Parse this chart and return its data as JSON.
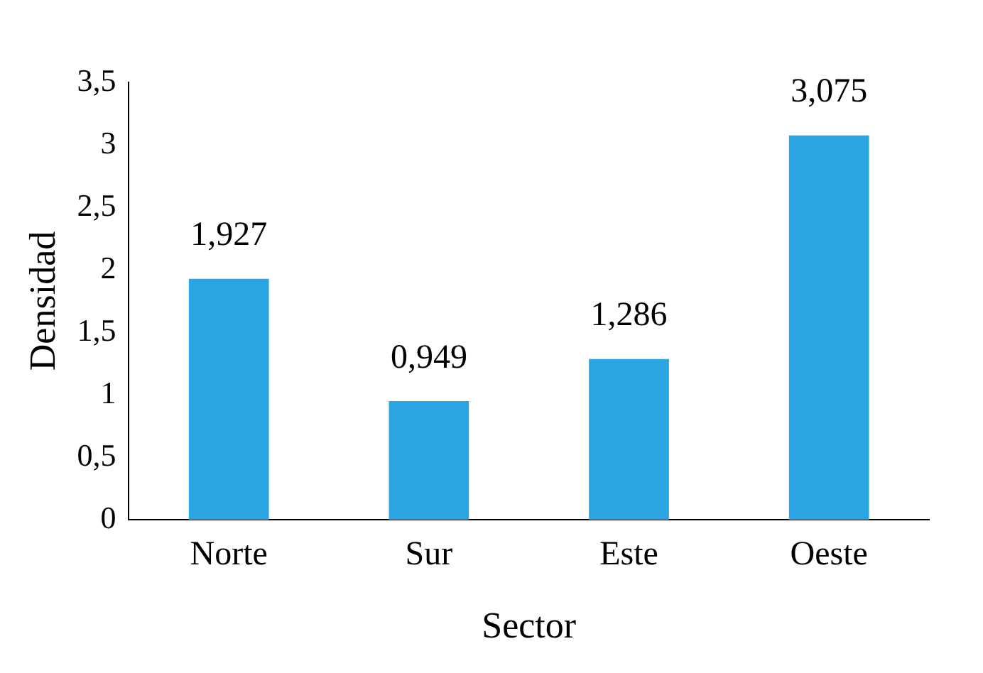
{
  "chart_data": {
    "type": "bar",
    "xlabel": "Sector",
    "ylabel": "Densidad",
    "categories": [
      "Norte",
      "Sur",
      "Este",
      "Oeste"
    ],
    "values": [
      1.927,
      0.949,
      1.286,
      3.075
    ],
    "value_labels": [
      "1,927",
      "0,949",
      "1,286",
      "3,075"
    ],
    "color": "#2aa4e2",
    "ylim": [
      0,
      3.5
    ],
    "yticks": [
      0,
      {
        "value": 0.5,
        "label": "0,5"
      },
      1,
      {
        "value": 1.5,
        "label": "1,5"
      },
      2,
      {
        "value": 2.5,
        "label": "2,5"
      },
      3,
      {
        "value": 3.5,
        "label": "3,5"
      }
    ],
    "grid": false,
    "legend": false
  }
}
